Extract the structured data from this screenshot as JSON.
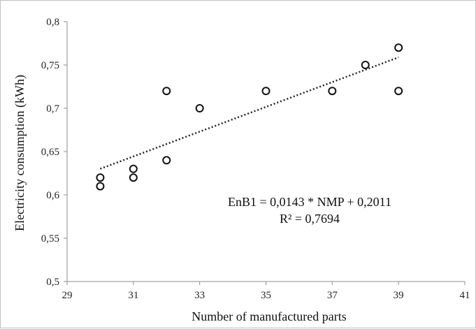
{
  "chart_data": {
    "type": "scatter",
    "title": "",
    "xlabel": "Number of manufactured parts",
    "ylabel": "Electricity consumption  (kWh)",
    "xlim": [
      29,
      41
    ],
    "ylim": [
      0.5,
      0.8
    ],
    "x_ticks": [
      "29",
      "31",
      "33",
      "35",
      "37",
      "39",
      "41"
    ],
    "y_ticks": [
      "0,5",
      "0,55",
      "0,6",
      "0,65",
      "0,7",
      "0,75",
      "0,8"
    ],
    "series": [
      {
        "x": [
          30,
          30,
          31,
          31,
          32,
          32,
          33,
          35,
          37,
          38,
          39,
          39
        ],
        "y": [
          0.62,
          0.61,
          0.63,
          0.62,
          0.72,
          0.64,
          0.7,
          0.72,
          0.72,
          0.75,
          0.77,
          0.72
        ]
      }
    ],
    "trendline": {
      "type": "linear",
      "slope": 0.0143,
      "intercept": 0.2011,
      "x_range": [
        30,
        39
      ],
      "style": "dotted"
    },
    "annotation": {
      "equation": "EnB1 = 0,0143 * NMP + 0,2011",
      "r_squared": "R² = 0,7694"
    },
    "grid": false,
    "legend": "none"
  }
}
